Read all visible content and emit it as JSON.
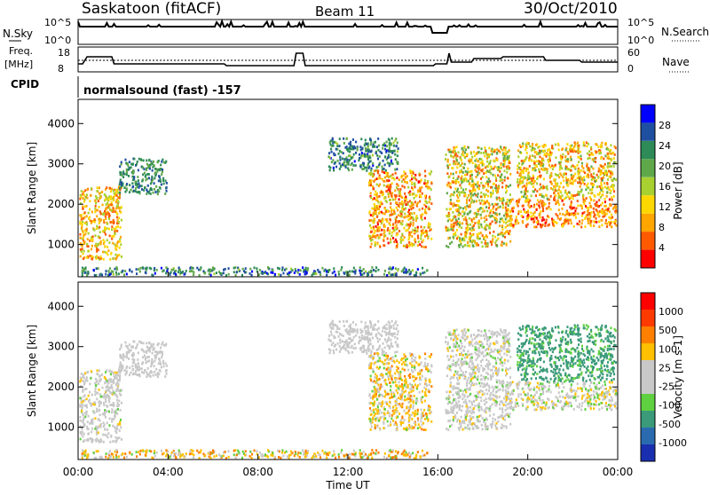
{
  "header": {
    "station": "Saskatoon (fitACF)",
    "beam": "Beam 11",
    "date": "30/Oct/2010"
  },
  "status_panels": {
    "nsky_label": "N.Sky",
    "nsky_ticks": [
      "10^5",
      "10^0"
    ],
    "nsearch_label": "N.Search",
    "nsearch_ticks": [
      "10^5",
      "10^0"
    ],
    "freq_label": "Freq.",
    "freq_unit": "[MHz]",
    "freq_ticks": [
      "18",
      "8"
    ],
    "nave_label": "Nave",
    "nave_ticks": [
      "60",
      "0"
    ],
    "cpid_label": "CPID",
    "cpid_text": "normalsound (fast) -157"
  },
  "chart_data": [
    {
      "type": "heatmap",
      "name": "power",
      "ylabel": "Slant Range [km]",
      "ylim": [
        200,
        4600
      ],
      "yticks": [
        "1000",
        "2000",
        "3000",
        "4000"
      ],
      "colorbar_label": "Power [dB]",
      "colorbar_ticks": [
        "28",
        "24",
        "20",
        "16",
        "12",
        "8",
        "4"
      ],
      "colors": [
        "#0000ff",
        "#1f4fa0",
        "#2e8b57",
        "#5fa84a",
        "#a8d030",
        "#ffd700",
        "#ffa500",
        "#ff5a00",
        "#ff0000"
      ],
      "value_range": [
        0,
        30
      ]
    },
    {
      "type": "heatmap",
      "name": "velocity",
      "ylabel": "Slant Range [km]",
      "ylim": [
        200,
        4600
      ],
      "yticks": [
        "1000",
        "2000",
        "3000",
        "4000"
      ],
      "colorbar_label": "Velocity [m s-1]",
      "colorbar_ticks": [
        "1000",
        "500",
        "100",
        "25",
        "-25",
        "-100",
        "-500",
        "-1000"
      ],
      "colors": [
        "#1a2fb0",
        "#2a6bb0",
        "#3a9a7a",
        "#5fd040",
        "#c8c8c8",
        "#c8c8c8",
        "#ffc000",
        "#ff7f00",
        "#ff3a00",
        "#ff0000"
      ]
    }
  ],
  "x_axis": {
    "label": "Time UT",
    "ticks": [
      "00:00",
      "04:00",
      "08:00",
      "12:00",
      "16:00",
      "20:00",
      "00:00"
    ]
  }
}
